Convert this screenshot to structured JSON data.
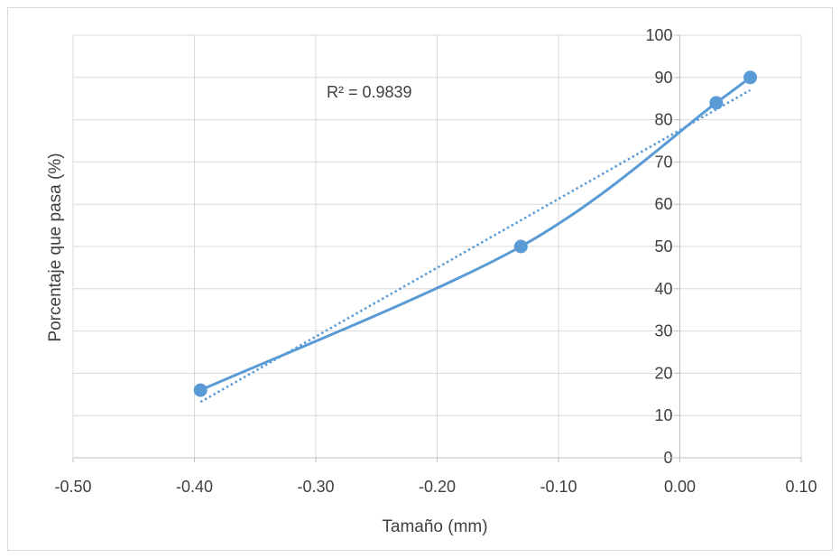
{
  "chart_data": {
    "type": "scatter",
    "xlabel": "Tamaño (mm)",
    "ylabel": "Porcentaje que pasa (%)",
    "xlim": [
      -0.5,
      0.1
    ],
    "ylim": [
      0,
      100
    ],
    "x_tick_values": [
      -0.5,
      -0.4,
      -0.3,
      -0.2,
      -0.1,
      0.0,
      0.1
    ],
    "x_tick_labels": [
      "-0.50",
      "-0.40",
      "-0.30",
      "-0.20",
      "-0.10",
      "0.00",
      "0.10"
    ],
    "y_tick_values": [
      0,
      10,
      20,
      30,
      40,
      50,
      60,
      70,
      80,
      90,
      100
    ],
    "y_tick_labels": [
      "0",
      "10",
      "20",
      "30",
      "40",
      "50",
      "60",
      "70",
      "80",
      "90",
      "100"
    ],
    "grid": true,
    "legend": "none",
    "series": [
      {
        "x": [
          -0.395,
          -0.131,
          0.03,
          0.058
        ],
        "y": [
          16,
          50,
          84,
          90
        ],
        "line": "smooth",
        "markers": true,
        "color": "#5B9BD5"
      }
    ],
    "trendline": {
      "style": "dotted",
      "color": "#5B9BD5",
      "x_range": [
        -0.395,
        0.058
      ],
      "y_range": [
        13.2,
        87.0
      ],
      "r_squared_label": "R² = 0.9839"
    }
  }
}
